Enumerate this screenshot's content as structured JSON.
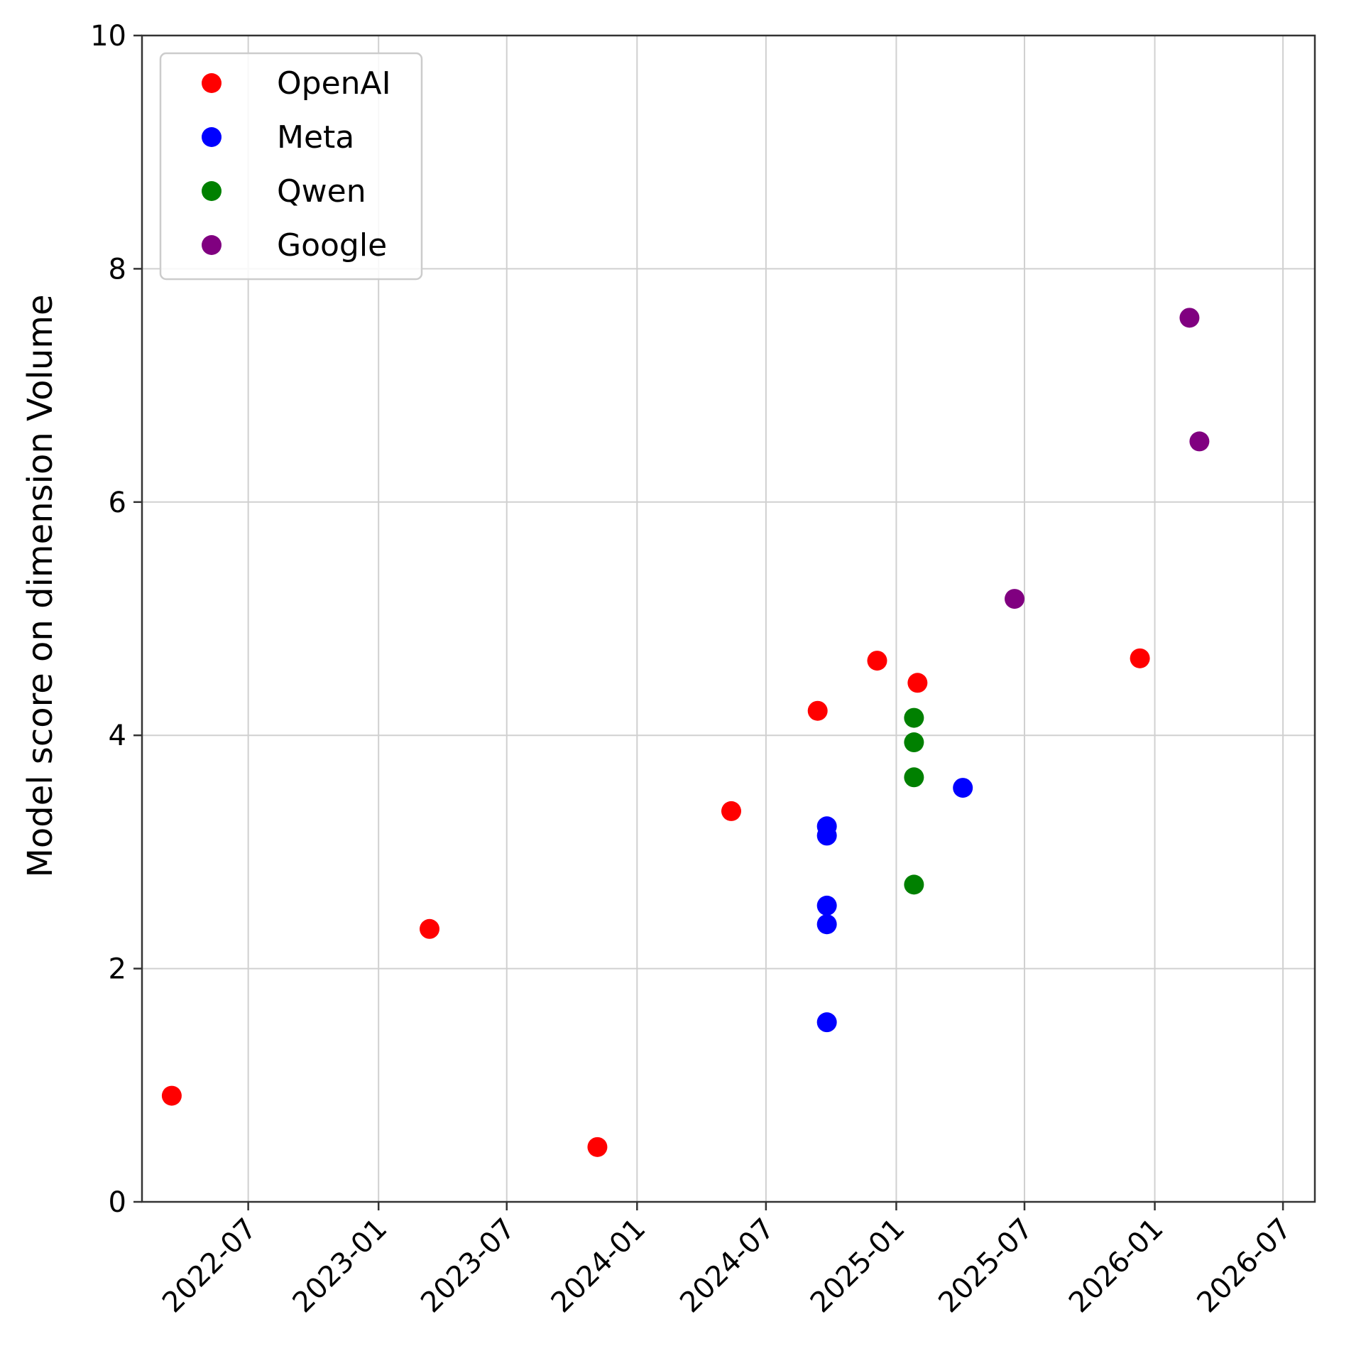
{
  "chart_data": {
    "type": "scatter",
    "title": "",
    "xlabel": "",
    "ylabel": "Model score on dimension Volume",
    "x_type": "date",
    "xlim": [
      "2022-02-01",
      "2026-08-15"
    ],
    "ylim": [
      0,
      10
    ],
    "x_ticks": [
      "2022-07",
      "2023-01",
      "2023-07",
      "2024-01",
      "2024-07",
      "2025-01",
      "2025-07",
      "2026-01",
      "2026-07"
    ],
    "y_ticks": [
      "0",
      "2",
      "4",
      "6",
      "8",
      "10"
    ],
    "grid": true,
    "legend_position": "top-left",
    "series": [
      {
        "name": "OpenAI",
        "color": "#ff0000",
        "points": [
          {
            "x": "2022-03-15",
            "y": 0.91
          },
          {
            "x": "2023-03-14",
            "y": 2.34
          },
          {
            "x": "2023-11-06",
            "y": 0.47
          },
          {
            "x": "2024-05-13",
            "y": 3.35
          },
          {
            "x": "2024-09-12",
            "y": 4.21
          },
          {
            "x": "2024-12-05",
            "y": 4.64
          },
          {
            "x": "2025-01-31",
            "y": 4.45
          },
          {
            "x": "2025-12-11",
            "y": 4.66
          }
        ]
      },
      {
        "name": "Meta",
        "color": "#0000ff",
        "points": [
          {
            "x": "2024-09-25",
            "y": 3.22
          },
          {
            "x": "2024-09-25",
            "y": 3.14
          },
          {
            "x": "2024-09-25",
            "y": 2.54
          },
          {
            "x": "2024-09-25",
            "y": 2.38
          },
          {
            "x": "2024-09-25",
            "y": 1.54
          },
          {
            "x": "2025-04-05",
            "y": 3.55
          }
        ]
      },
      {
        "name": "Qwen",
        "color": "#008000",
        "points": [
          {
            "x": "2025-01-26",
            "y": 4.15
          },
          {
            "x": "2025-01-26",
            "y": 3.94
          },
          {
            "x": "2025-01-26",
            "y": 3.64
          },
          {
            "x": "2025-01-26",
            "y": 2.72
          }
        ]
      },
      {
        "name": "Google",
        "color": "#800080",
        "points": [
          {
            "x": "2025-06-17",
            "y": 5.17
          },
          {
            "x": "2026-02-19",
            "y": 7.58
          },
          {
            "x": "2026-03-05",
            "y": 6.52
          }
        ]
      }
    ]
  }
}
